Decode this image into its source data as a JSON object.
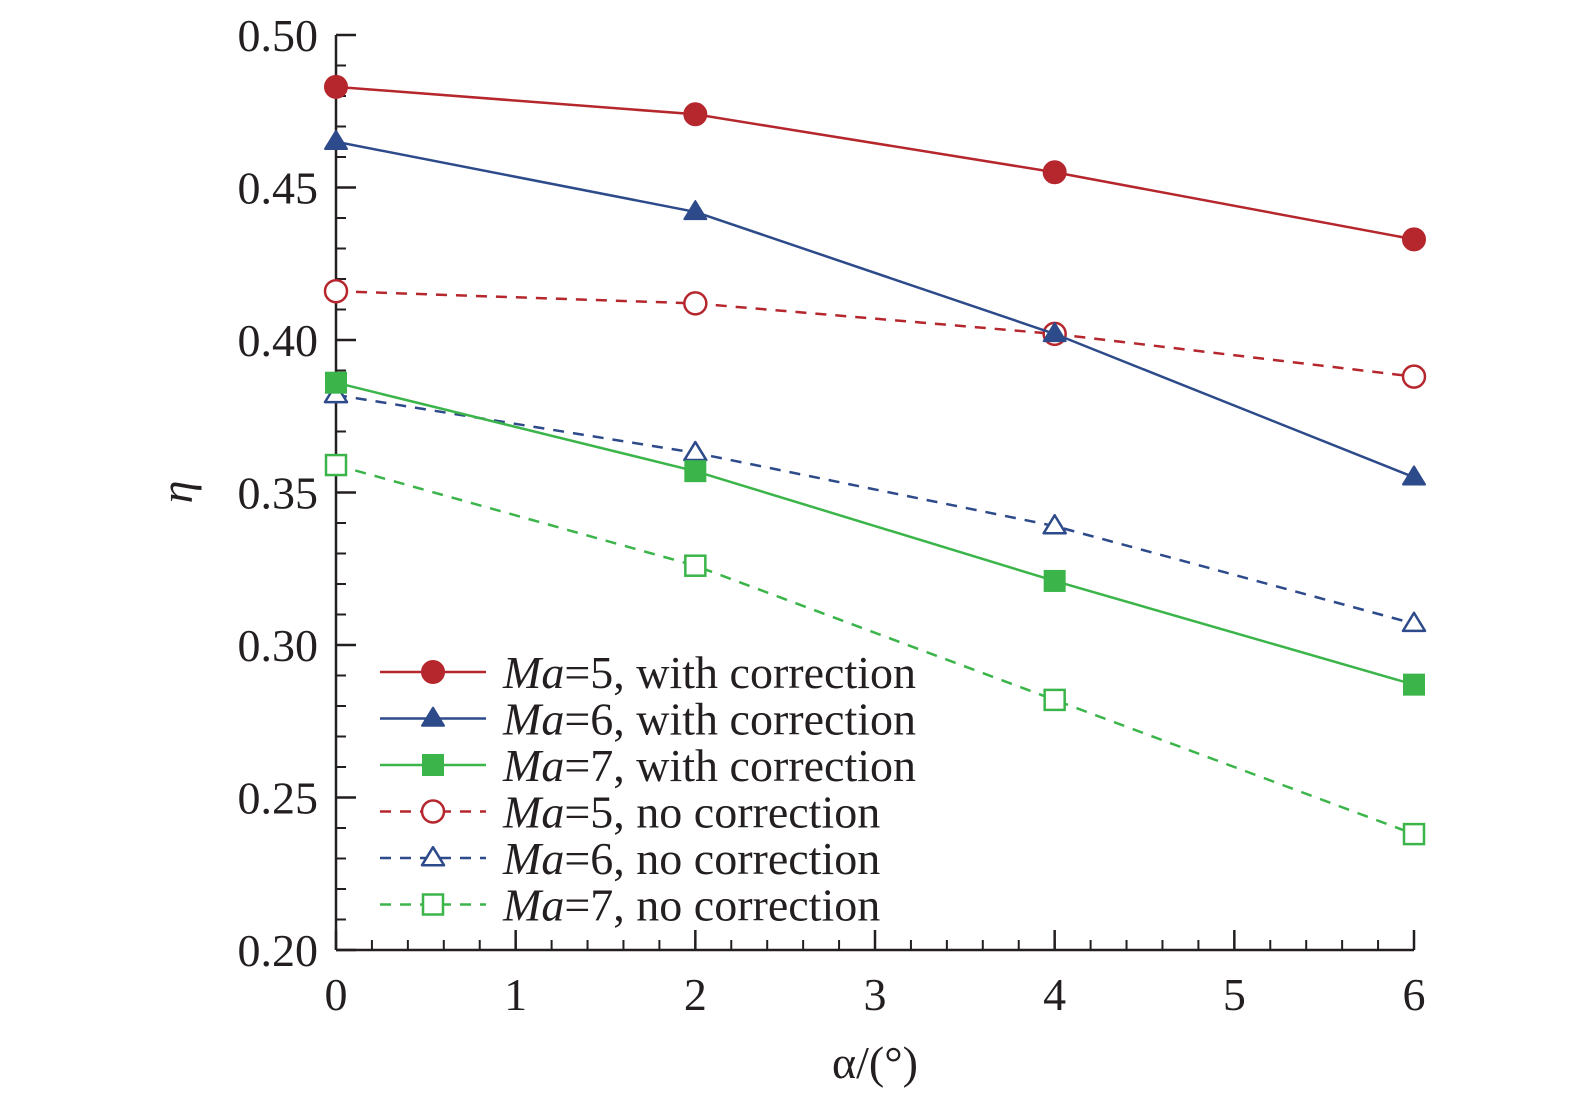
{
  "chart_data": {
    "type": "line",
    "xlabel": "α/(°)",
    "ylabel": "η",
    "xlim": [
      0,
      6
    ],
    "ylim": [
      0.2,
      0.5
    ],
    "x_ticks": [
      "0",
      "1",
      "2",
      "3",
      "4",
      "5",
      "6"
    ],
    "y_ticks": [
      "0.20",
      "0.25",
      "0.30",
      "0.35",
      "0.40",
      "0.45",
      "0.50"
    ],
    "x": [
      0,
      2,
      4,
      6
    ],
    "legend_position": "bottom-left",
    "series": [
      {
        "name_prefix": "Ma",
        "name_suffix": "=5, with correction",
        "values": [
          0.483,
          0.474,
          0.455,
          0.433
        ],
        "color": "#b5262d",
        "marker": "circle",
        "filled": true,
        "dashed": false
      },
      {
        "name_prefix": "Ma",
        "name_suffix": "=6, with correction",
        "values": [
          0.465,
          0.442,
          0.402,
          0.355
        ],
        "color": "#2d4a8a",
        "marker": "triangle",
        "filled": true,
        "dashed": false
      },
      {
        "name_prefix": "Ma",
        "name_suffix": "=7, with correction",
        "values": [
          0.386,
          0.357,
          0.321,
          0.287
        ],
        "color": "#3bb54a",
        "marker": "square",
        "filled": true,
        "dashed": false
      },
      {
        "name_prefix": "Ma",
        "name_suffix": "=5, no correction",
        "values": [
          0.416,
          0.412,
          0.402,
          0.388
        ],
        "color": "#b5262d",
        "marker": "circle",
        "filled": false,
        "dashed": true
      },
      {
        "name_prefix": "Ma",
        "name_suffix": "=6, no correction",
        "values": [
          0.382,
          0.363,
          0.339,
          0.307
        ],
        "color": "#2d4a8a",
        "marker": "triangle",
        "filled": false,
        "dashed": true
      },
      {
        "name_prefix": "Ma",
        "name_suffix": "=7, no correction",
        "values": [
          0.359,
          0.326,
          0.282,
          0.238
        ],
        "color": "#3bb54a",
        "marker": "square",
        "filled": false,
        "dashed": true
      }
    ]
  }
}
